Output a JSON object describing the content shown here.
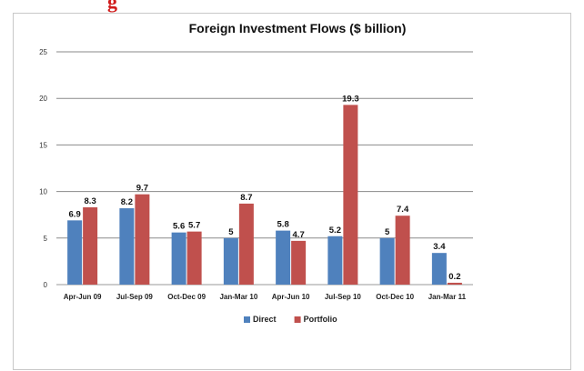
{
  "page": {
    "top_fragment": "g"
  },
  "chart_data": {
    "type": "bar",
    "title": "Foreign Investment Flows ($ billion)",
    "xlabel": "",
    "ylabel": "",
    "ylim": [
      0,
      25
    ],
    "yticks": [
      0,
      5,
      10,
      15,
      20,
      25
    ],
    "grid": true,
    "legend_position": "bottom",
    "categories": [
      "Apr-Jun 09",
      "Jul-Sep 09",
      "Oct-Dec 09",
      "Jan-Mar 10",
      "Apr-Jun 10",
      "Jul-Sep 10",
      "Oct-Dec 10",
      "Jan-Mar 11"
    ],
    "series": [
      {
        "name": "Direct",
        "color": "#4f81bd",
        "values": [
          6.9,
          8.2,
          5.6,
          5,
          5.8,
          5.2,
          5,
          3.4
        ]
      },
      {
        "name": "Portfolio",
        "color": "#c0504d",
        "values": [
          8.3,
          9.7,
          5.7,
          8.7,
          4.7,
          19.3,
          7.4,
          0.2
        ]
      }
    ]
  }
}
